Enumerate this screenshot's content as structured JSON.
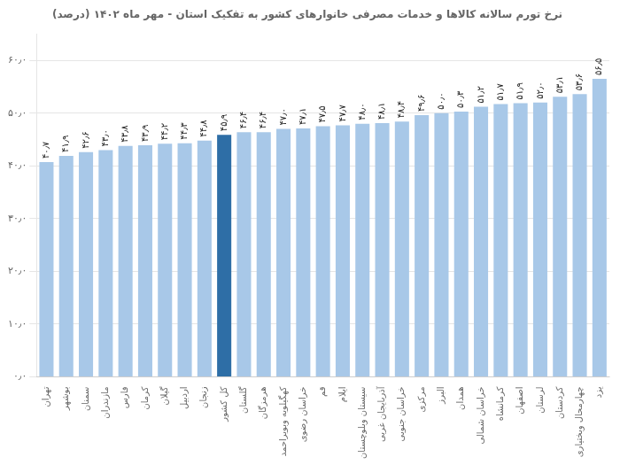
{
  "chart_data": {
    "type": "bar",
    "title": "نرخ تورم سالانه کالاها و خدمات مصرفی خانوارهای کشور به تفکیک استان - مهر ماه ۱۴۰۲ (درصد)",
    "categories": [
      "تهران",
      "بوشهر",
      "سمنان",
      "مازندران",
      "فارس",
      "کرمان",
      "گیلان",
      "اردبیل",
      "زنجان",
      "کل کشور",
      "گلستان",
      "هرمزگان",
      "کهگیلویه وبویراحمد",
      "خراسان رضوی",
      "قم",
      "ایلام",
      "سیستان وبلوچستان",
      "آذربایجان غربی",
      "خراسان جنوبی",
      "مرکزی",
      "البرز",
      "همدان",
      "خراسان شمالی",
      "کرمانشاه",
      "اصفهان",
      "لرستان",
      "کردستان",
      "چهارمحال وبختیاری",
      "یزد"
    ],
    "values": [
      40.7,
      41.9,
      42.6,
      43.0,
      43.8,
      43.9,
      44.2,
      44.3,
      44.8,
      45.9,
      46.4,
      46.4,
      47.0,
      47.1,
      47.5,
      47.7,
      48.0,
      48.1,
      48.4,
      49.6,
      50.0,
      50.3,
      51.2,
      51.7,
      51.9,
      52.0,
      53.1,
      53.6,
      56.5
    ],
    "value_labels": [
      "۴۰٫۷",
      "۴۱٫۹",
      "۴۲٫۶",
      "۴۳٫۰",
      "۴۳٫۸",
      "۴۳٫۹",
      "۴۴٫۲",
      "۴۴٫۳",
      "۴۴٫۸",
      "۴۵٫۹",
      "۴۶٫۴",
      "۴۶٫۴",
      "۴۷٫۰",
      "۴۷٫۱",
      "۴۷٫۵",
      "۴۷٫۷",
      "۴۸٫۰",
      "۴۸٫۱",
      "۴۸٫۴",
      "۴۹٫۶",
      "۵۰٫۰",
      "۵۰٫۳",
      "۵۱٫۲",
      "۵۱٫۷",
      "۵۱٫۹",
      "۵۲٫۰",
      "۵۳٫۱",
      "۵۳٫۶",
      "۵۶٫۵"
    ],
    "colors": [
      "#a8c8e8",
      "#a8c8e8",
      "#a8c8e8",
      "#a8c8e8",
      "#a8c8e8",
      "#a8c8e8",
      "#a8c8e8",
      "#a8c8e8",
      "#a8c8e8",
      "#2e6ea6",
      "#a8c8e8",
      "#a8c8e8",
      "#a8c8e8",
      "#a8c8e8",
      "#a8c8e8",
      "#a8c8e8",
      "#a8c8e8",
      "#a8c8e8",
      "#a8c8e8",
      "#a8c8e8",
      "#a8c8e8",
      "#a8c8e8",
      "#a8c8e8",
      "#a8c8e8",
      "#a8c8e8",
      "#a8c8e8",
      "#a8c8e8",
      "#a8c8e8",
      "#a8c8e8"
    ],
    "ylim": [
      0,
      65
    ],
    "yticks": [
      {
        "value": 0,
        "label": "۰٫۰"
      },
      {
        "value": 10,
        "label": "۱۰٫۰"
      },
      {
        "value": 20,
        "label": "۲۰٫۰"
      },
      {
        "value": 30,
        "label": "۳۰٫۰"
      },
      {
        "value": 40,
        "label": "۴۰٫۰"
      },
      {
        "value": 50,
        "label": "۵۰٫۰"
      },
      {
        "value": 60,
        "label": "۶۰٫۰"
      }
    ],
    "grid": true,
    "data_labels": true
  }
}
